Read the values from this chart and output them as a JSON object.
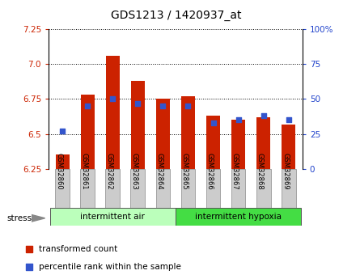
{
  "title": "GDS1213 / 1420937_at",
  "samples": [
    "GSM32860",
    "GSM32861",
    "GSM32862",
    "GSM32863",
    "GSM32864",
    "GSM32865",
    "GSM32866",
    "GSM32867",
    "GSM32868",
    "GSM32869"
  ],
  "transformed_counts": [
    6.35,
    6.78,
    7.06,
    6.88,
    6.75,
    6.77,
    6.63,
    6.6,
    6.62,
    6.57
  ],
  "percentile_ranks": [
    27,
    45,
    50,
    47,
    45,
    45,
    33,
    35,
    38,
    35
  ],
  "ymin": 6.25,
  "ymax": 7.25,
  "yticks": [
    6.25,
    6.5,
    6.75,
    7.0,
    7.25
  ],
  "right_yticks": [
    0,
    25,
    50,
    75,
    100
  ],
  "right_yticklabels": [
    "0",
    "25",
    "50",
    "75",
    "100%"
  ],
  "bar_color": "#cc2200",
  "blue_color": "#3355cc",
  "bar_width": 0.55,
  "group1_label": "intermittent air",
  "group2_label": "intermittent hypoxia",
  "group1_color": "#bbffbb",
  "group2_color": "#44dd44",
  "stress_label": "stress",
  "legend_red": "transformed count",
  "legend_blue": "percentile rank within the sample",
  "xlabel_color": "#cc2200",
  "right_axis_color": "#2244cc",
  "tick_bg": "#cccccc"
}
